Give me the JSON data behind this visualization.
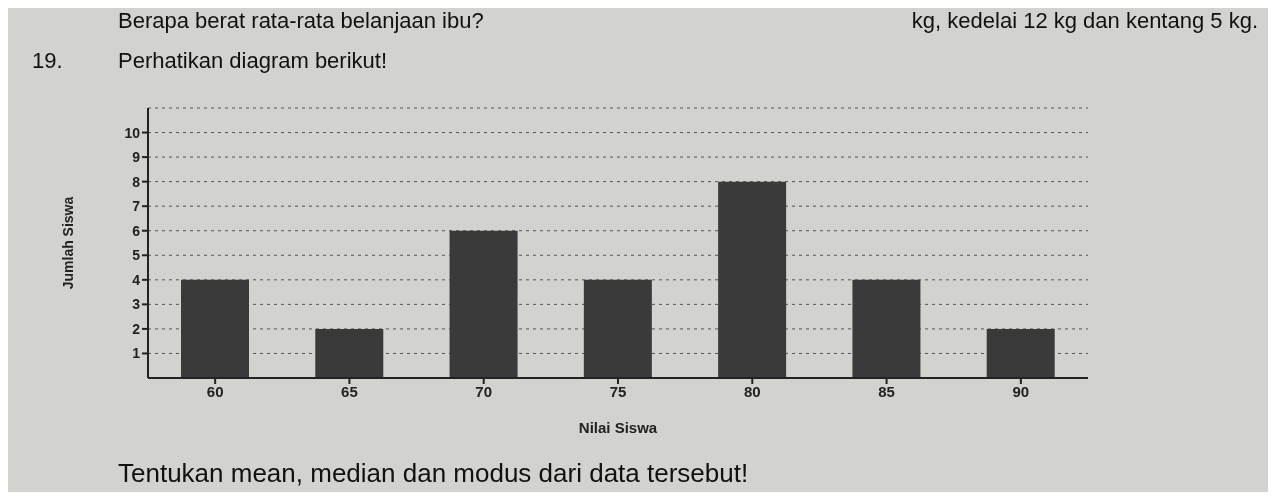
{
  "chart_data": {
    "type": "bar",
    "title": "Perhatikan diagram berikut!",
    "annotations": [
      "Berapa berat rata-rata belanjaan ibu?",
      "kg, kedelai 12 kg dan kentang 5 kg.",
      "19.",
      "Tentukan mean, median dan modus dari data tersebut!"
    ],
    "xlabel": "Nilai Siswa",
    "ylabel": "Jumlah Siswa",
    "categories": [
      "60",
      "65",
      "70",
      "75",
      "80",
      "85",
      "90"
    ],
    "values": [
      4,
      2,
      6,
      4,
      8,
      4,
      2
    ],
    "color": "#3a3a3a",
    "ylim": [
      0,
      11
    ],
    "yticks": [
      1,
      2,
      3,
      4,
      5,
      6,
      7,
      8,
      9,
      10
    ],
    "grid": "y",
    "legend": false
  }
}
